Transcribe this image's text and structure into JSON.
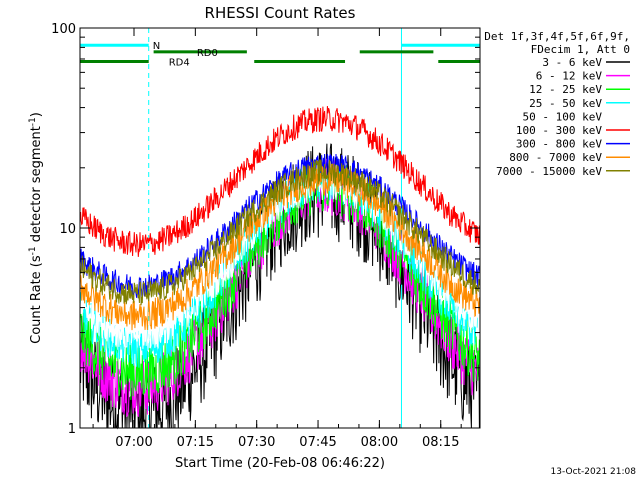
{
  "chart_data": {
    "type": "line",
    "title": "RHESSI Count Rates",
    "xlabel": "Start Time (20-Feb-08 06:46:22)",
    "ylabel_main": "Count Rate (s",
    "ylabel_sup1": "-1",
    "ylabel_mid": " detector segment",
    "ylabel_sup2": "-1",
    "ylabel_end": ")",
    "y_scale": "log",
    "ylim": [
      1,
      100
    ],
    "xlim_minutes": [
      6.78,
      8.41
    ],
    "x_ticks": [
      {
        "label": "07:00",
        "hours": 7.0
      },
      {
        "label": "07:15",
        "hours": 7.25
      },
      {
        "label": "07:30",
        "hours": 7.5
      },
      {
        "label": "07:45",
        "hours": 7.75
      },
      {
        "label": "08:00",
        "hours": 8.0
      },
      {
        "label": "08:15",
        "hours": 8.25
      }
    ],
    "y_ticks": [
      {
        "label": "1",
        "value": 1
      },
      {
        "label": "10",
        "value": 10
      },
      {
        "label": "100",
        "value": 100
      }
    ],
    "legend_header": [
      "Det 1f,3f,4f,5f,6f,9f,",
      "FDecim 1, Att 0"
    ],
    "series": [
      {
        "name": "3 - 6 keV",
        "color": "#000000",
        "base": 5.2,
        "amp": 0.62,
        "noise": 0.5
      },
      {
        "name": "6 - 12 keV",
        "color": "#ff00ff",
        "base": 6.0,
        "amp": 0.56,
        "noise": 0.3
      },
      {
        "name": "12 - 25 keV",
        "color": "#00ff00",
        "base": 6.5,
        "amp": 0.52,
        "noise": 0.28
      },
      {
        "name": "25 - 50 keV",
        "color": "#00ffff",
        "base": 7.5,
        "amp": 0.46,
        "noise": 0.2
      },
      {
        "name": "50 - 100 keV",
        "color": "#ffffff",
        "base": 8.0,
        "amp": 0.42,
        "noise": 0.18
      },
      {
        "name": "100 - 300 keV",
        "color": "#ff0000",
        "base": 19.0,
        "amp": 0.35,
        "noise": 0.13
      },
      {
        "name": "300 - 800 keV",
        "color": "#0000ff",
        "base": 11.5,
        "amp": 0.34,
        "noise": 0.12
      },
      {
        "name": "800 - 7000 keV",
        "color": "#ff8c00",
        "base": 9.0,
        "amp": 0.38,
        "noise": 0.16
      },
      {
        "name": "7000 - 15000 keV",
        "color": "#808000",
        "base": 10.5,
        "amp": 0.34,
        "noise": 0.13
      }
    ],
    "flags": [
      {
        "label": "N",
        "color": "#00ffff",
        "segments": [
          [
            6.78,
            7.06
          ],
          [
            8.09,
            8.41
          ]
        ],
        "y_value": 82
      },
      {
        "label": "RD0",
        "color": "#008000",
        "segments": [
          [
            7.08,
            7.46
          ],
          [
            7.92,
            8.22
          ]
        ],
        "y_value": 76
      },
      {
        "label": "RD4",
        "color": "#008000",
        "segments": [
          [
            6.78,
            7.06
          ],
          [
            7.49,
            7.86
          ],
          [
            8.24,
            8.41
          ]
        ],
        "y_value": 68
      }
    ],
    "vlines": [
      {
        "hours": 8.09,
        "style": "solid",
        "color": "#00ffff"
      },
      {
        "hours": 7.06,
        "style": "dashed",
        "color": "#00ffff"
      },
      {
        "hours": 8.41,
        "style": "dashed",
        "color": "#00ffff"
      }
    ]
  },
  "timestamp": "13-Oct-2021 21:08"
}
